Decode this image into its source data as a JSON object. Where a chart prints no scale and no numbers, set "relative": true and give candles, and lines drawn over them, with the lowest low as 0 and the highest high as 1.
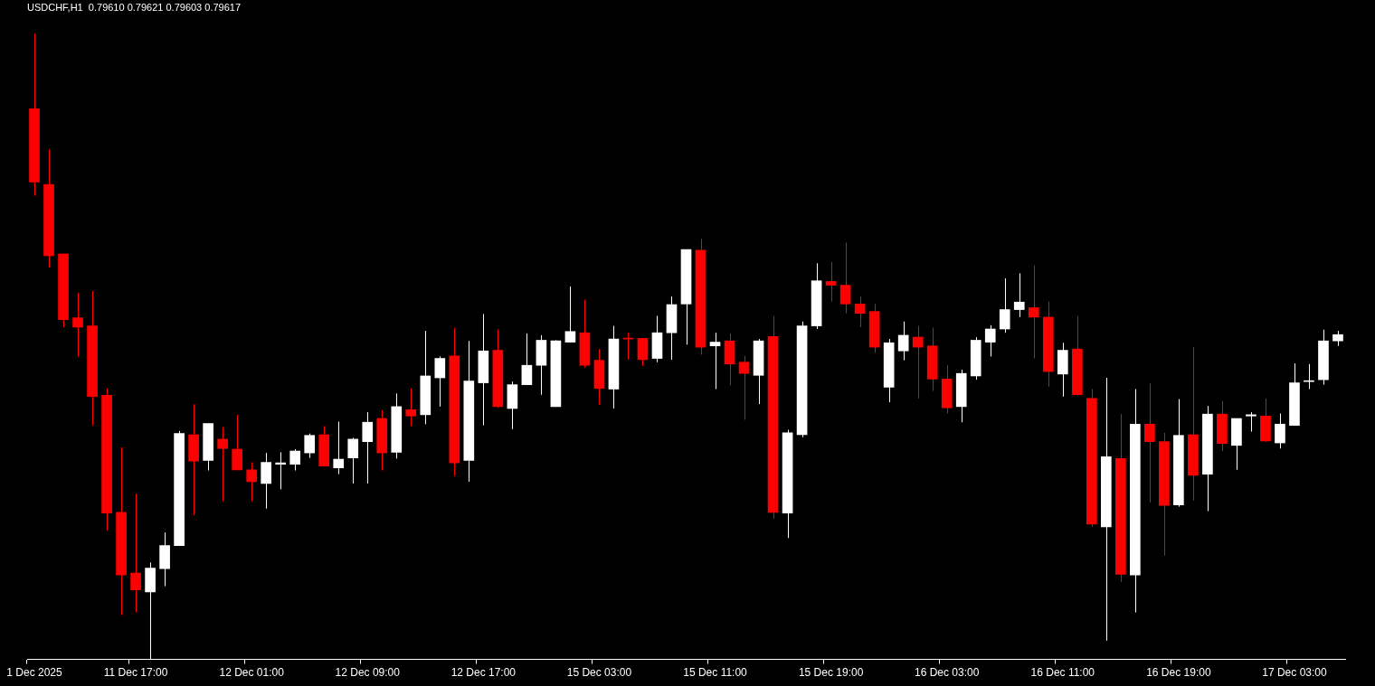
{
  "chart_data": {
    "type": "candlestick",
    "title": "USDCHF,H1  0.79610 0.79621 0.79603 0.79617",
    "relative": true,
    "grid": false,
    "legend": false,
    "categories": [
      "1 Dec 2025",
      null,
      null,
      null,
      null,
      null,
      null,
      "11 Dec 17:00",
      null,
      null,
      null,
      null,
      null,
      null,
      null,
      "12 Dec 01:00",
      null,
      null,
      null,
      null,
      null,
      null,
      null,
      "12 Dec 09:00",
      null,
      null,
      null,
      null,
      null,
      null,
      null,
      "12 Dec 17:00",
      null,
      null,
      null,
      null,
      null,
      null,
      null,
      "15 Dec 03:00",
      null,
      null,
      null,
      null,
      null,
      null,
      null,
      "15 Dec 11:00",
      null,
      null,
      null,
      null,
      null,
      null,
      null,
      "15 Dec 19:00",
      null,
      null,
      null,
      null,
      null,
      null,
      null,
      "16 Dec 03:00",
      null,
      null,
      null,
      null,
      null,
      null,
      null,
      "16 Dec 11:00",
      null,
      null,
      null,
      null,
      null,
      null,
      null,
      "16 Dec 19:00",
      null,
      null,
      null,
      null,
      null,
      null,
      null,
      "17 Dec 03:00",
      null,
      null,
      null
    ],
    "ohlc": [
      [
        0.88,
        1.0,
        0.741,
        0.763
      ],
      [
        0.759,
        0.815,
        0.626,
        0.645
      ],
      [
        0.648,
        0.648,
        0.531,
        0.543
      ],
      [
        0.546,
        0.586,
        0.484,
        0.531
      ],
      [
        0.533,
        0.589,
        0.374,
        0.42
      ],
      [
        0.422,
        0.433,
        0.206,
        0.234
      ],
      [
        0.235,
        0.339,
        0.071,
        0.135
      ],
      [
        0.138,
        0.265,
        0.075,
        0.111
      ],
      [
        0.108,
        0.155,
        0,
        0.146
      ],
      [
        0.145,
        0.203,
        0.117,
        0.182
      ],
      [
        0.182,
        0.365,
        0.182,
        0.361
      ],
      [
        0.359,
        0.408,
        0.231,
        0.317
      ],
      [
        0.318,
        0.377,
        0.302,
        0.377
      ],
      [
        0.352,
        0.371,
        0.253,
        0.337
      ],
      [
        0.336,
        0.391,
        0.303,
        0.303
      ],
      [
        0.303,
        0.315,
        0.253,
        0.284
      ],
      [
        0.281,
        0.33,
        0.241,
        0.315
      ],
      [
        0.312,
        0.331,
        0.272,
        0.314
      ],
      [
        0.312,
        0.336,
        0.302,
        0.333
      ],
      [
        0.33,
        0.361,
        0.322,
        0.358
      ],
      [
        0.359,
        0.373,
        0.308,
        0.309
      ],
      [
        0.306,
        0.38,
        0.296,
        0.32
      ],
      [
        0.322,
        0.354,
        0.281,
        0.352
      ],
      [
        0.348,
        0.395,
        0.281,
        0.379
      ],
      [
        0.385,
        0.398,
        0.302,
        0.33
      ],
      [
        0.331,
        0.425,
        0.321,
        0.404
      ],
      [
        0.399,
        0.433,
        0.373,
        0.389
      ],
      [
        0.391,
        0.525,
        0.376,
        0.453
      ],
      [
        0.45,
        0.484,
        0.404,
        0.481
      ],
      [
        0.485,
        0.53,
        0.293,
        0.314
      ],
      [
        0.318,
        0.509,
        0.284,
        0.445
      ],
      [
        0.442,
        0.552,
        0.374,
        0.493
      ],
      [
        0.494,
        0.527,
        0.402,
        0.404
      ],
      [
        0.401,
        0.444,
        0.368,
        0.439
      ],
      [
        0.439,
        0.521,
        0.439,
        0.47
      ],
      [
        0.47,
        0.518,
        0.423,
        0.51
      ],
      [
        0.404,
        0.51,
        0.404,
        0.509
      ],
      [
        0.507,
        0.596,
        0.507,
        0.524
      ],
      [
        0.522,
        0.575,
        0.466,
        0.47
      ],
      [
        0.478,
        0.496,
        0.407,
        0.433
      ],
      [
        0.432,
        0.533,
        0.401,
        0.512
      ],
      [
        0.513,
        0.522,
        0.479,
        0.512
      ],
      [
        0.513,
        0.513,
        0.469,
        0.479
      ],
      [
        0.481,
        0.549,
        0.475,
        0.522
      ],
      [
        0.522,
        0.58,
        0.479,
        0.567
      ],
      [
        0.568,
        0.655,
        0.503,
        0.655
      ],
      [
        0.654,
        0.672,
        0.487,
        0.499
      ],
      [
        0.501,
        0.522,
        0.432,
        0.507
      ],
      [
        0.509,
        0.521,
        0.438,
        0.472
      ],
      [
        0.475,
        0.485,
        0.383,
        0.457
      ],
      [
        0.454,
        0.512,
        0.408,
        0.509
      ],
      [
        0.516,
        0.549,
        0.225,
        0.235
      ],
      [
        0.234,
        0.367,
        0.194,
        0.362
      ],
      [
        0.359,
        0.54,
        0.355,
        0.533
      ],
      [
        0.533,
        0.633,
        0.528,
        0.605
      ],
      [
        0.604,
        0.635,
        0.572,
        0.598
      ],
      [
        0.598,
        0.666,
        0.553,
        0.568
      ],
      [
        0.568,
        0.58,
        0.531,
        0.553
      ],
      [
        0.556,
        0.568,
        0.49,
        0.499
      ],
      [
        0.435,
        0.512,
        0.411,
        0.506
      ],
      [
        0.493,
        0.54,
        0.478,
        0.518
      ],
      [
        0.515,
        0.533,
        0.417,
        0.499
      ],
      [
        0.501,
        0.53,
        0.429,
        0.448
      ],
      [
        0.448,
        0.47,
        0.393,
        0.402
      ],
      [
        0.404,
        0.463,
        0.379,
        0.457
      ],
      [
        0.453,
        0.515,
        0.447,
        0.51
      ],
      [
        0.507,
        0.534,
        0.484,
        0.528
      ],
      [
        0.528,
        0.609,
        0.522,
        0.559
      ],
      [
        0.559,
        0.617,
        0.547,
        0.571
      ],
      [
        0.562,
        0.63,
        0.481,
        0.547
      ],
      [
        0.547,
        0.572,
        0.436,
        0.46
      ],
      [
        0.456,
        0.506,
        0.42,
        0.494
      ],
      [
        0.496,
        0.549,
        0.422,
        0.423
      ],
      [
        0.417,
        0.432,
        0.212,
        0.216
      ],
      [
        0.212,
        0.45,
        0.03,
        0.324
      ],
      [
        0.321,
        0.392,
        0.124,
        0.136
      ],
      [
        0.135,
        0.432,
        0.075,
        0.376
      ],
      [
        0.376,
        0.441,
        0.251,
        0.348
      ],
      [
        0.348,
        0.362,
        0.166,
        0.246
      ],
      [
        0.247,
        0.416,
        0.244,
        0.358
      ],
      [
        0.359,
        0.499,
        0.254,
        0.294
      ],
      [
        0.296,
        0.405,
        0.237,
        0.392
      ],
      [
        0.392,
        0.413,
        0.333,
        0.345
      ],
      [
        0.342,
        0.385,
        0.303,
        0.385
      ],
      [
        0.389,
        0.395,
        0.364,
        0.391
      ],
      [
        0.389,
        0.417,
        0.348,
        0.349
      ],
      [
        0.346,
        0.393,
        0.337,
        0.376
      ],
      [
        0.374,
        0.473,
        0.374,
        0.442
      ],
      [
        0.444,
        0.472,
        0.432,
        0.445
      ],
      [
        0.447,
        0.527,
        0.439,
        0.509
      ],
      [
        0.509,
        0.525,
        0.501,
        0.519
      ]
    ],
    "colors": [
      "#ff0000",
      "#ff0000",
      "#ff0000",
      "#ff0000",
      "#ff0000",
      "#ff0000",
      "#ff0000",
      "#ff0000",
      "#ffffff",
      "#ffffff",
      "#ffffff",
      "#ff0000",
      "#ffffff",
      "#ff0000",
      "#ff0000",
      "#ff0000",
      "#ffffff",
      "#ffffff",
      "#ffffff",
      "#ffffff",
      "#ff0000",
      "#ffffff",
      "#ffffff",
      "#ffffff",
      "#ff0000",
      "#ffffff",
      "#ff0000",
      "#ffffff",
      "#ffffff",
      "#ff0000",
      "#ffffff",
      "#ffffff",
      "#ff0000",
      "#ffffff",
      "#ffffff",
      "#ffffff",
      "#ffffff",
      "#ffffff",
      "#ff0000",
      "#ff0000",
      "#ffffff",
      "#ff0000",
      "#ff0000",
      "#ffffff",
      "#ffffff",
      "#ffffff",
      "#ff0000",
      "#ffffff",
      "#ff0000",
      "#ff0000",
      "#ffffff",
      "#ff0000",
      "#ffffff",
      "#ffffff",
      "#ffffff",
      "#ff0000",
      "#ff0000",
      "#ff0000",
      "#ff0000",
      "#ffffff",
      "#ffffff",
      "#ff0000",
      "#ff0000",
      "#ff0000",
      "#ffffff",
      "#ffffff",
      "#ffffff",
      "#ffffff",
      "#ffffff",
      "#ff0000",
      "#ff0000",
      "#ffffff",
      "#ff0000",
      "#ff0000",
      "#ffffff",
      "#ff0000",
      "#ffffff",
      "#ff0000",
      "#ff0000",
      "#ffffff",
      "#ff0000",
      "#ffffff",
      "#ff0000",
      "#ffffff",
      "#ffffff",
      "#ff0000",
      "#ffffff",
      "#ffffff",
      "#ffffff",
      "#ffffff",
      "#ffffff"
    ]
  }
}
